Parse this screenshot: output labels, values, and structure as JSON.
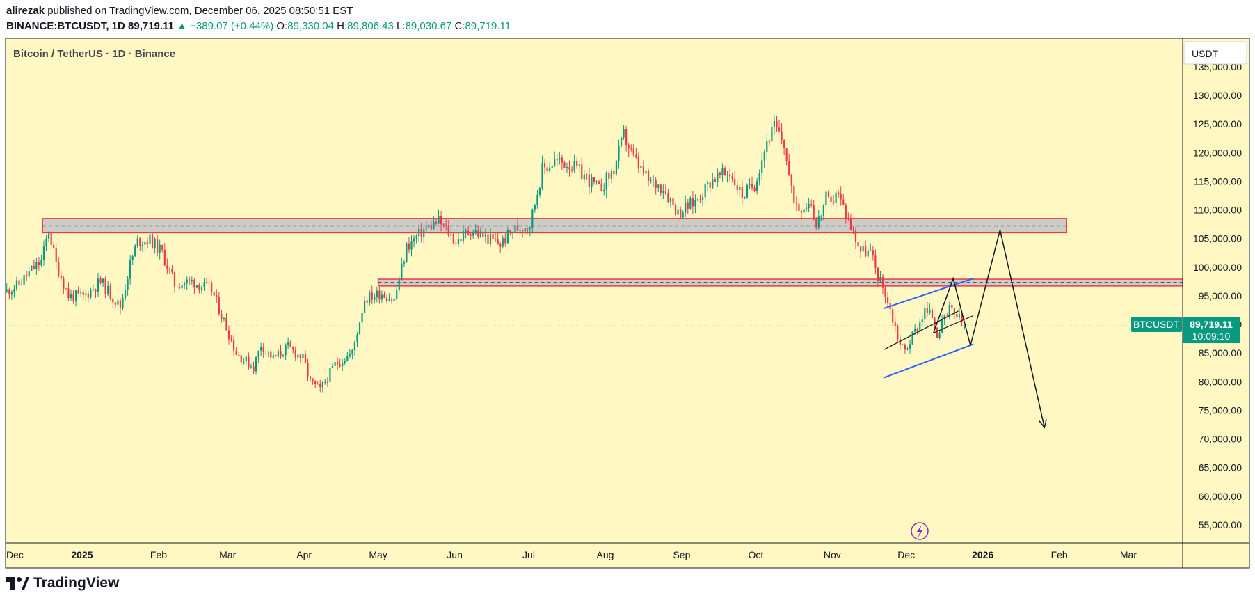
{
  "header": {
    "author": "alirezak",
    "published_text": "published on TradingView.com, December 06, 2025 08:50:51 EST",
    "symbol": "BINANCE:BTCUSDT, 1D",
    "last": "89,719.11",
    "change": "+389.07 (+0.44%)",
    "open_label": "O:",
    "open": "89,330.04",
    "high_label": "H:",
    "high": "89,806.43",
    "low_label": "L:",
    "low": "89,030.67",
    "close_label": "C:",
    "close": "89,719.11"
  },
  "chart_title": "Bitcoin / TetherUS · 1D · Binance",
  "currency": "USDT",
  "price_tag": {
    "symbol": "BTCUSDT",
    "price": "89,719.11",
    "countdown": "10:09:10"
  },
  "branding": "TradingView",
  "colors": {
    "background": "#fff8c2",
    "up": "#089981",
    "down": "#f23645",
    "zone_fill": "#c8c8c8",
    "zone_border": "#f23645",
    "channel": "#2962ff",
    "projection": "#131722",
    "flash": "#9c27b0"
  },
  "chart_data": {
    "type": "candlestick",
    "title": "Bitcoin / TetherUS · 1D · Binance",
    "ylabel": "USDT",
    "ylim": [
      50000,
      136000
    ],
    "yticks": [
      55000,
      60000,
      65000,
      70000,
      75000,
      80000,
      85000,
      90000,
      95000,
      100000,
      105000,
      110000,
      115000,
      120000,
      125000,
      130000,
      135000
    ],
    "ytick_labels": [
      "55,000.00",
      "60,000.00",
      "65,000.00",
      "70,000.00",
      "75,000.00",
      "80,000.00",
      "85,000.00",
      "90,000.00",
      "95,000.00",
      "100,000.00",
      "105,000.00",
      "110,000.00",
      "115,000.00",
      "120,000.00",
      "125,000.00",
      "130,000.00",
      "135,000.00"
    ],
    "x_months": [
      "Dec",
      "2025",
      "Feb",
      "Mar",
      "Apr",
      "May",
      "Jun",
      "Jul",
      "Aug",
      "Sep",
      "Oct",
      "Nov",
      "Dec",
      "2026",
      "Feb",
      "Mar"
    ],
    "x_month_offsets": [
      0,
      31,
      62,
      90,
      121,
      151,
      182,
      212,
      243,
      274,
      304,
      335,
      365,
      396,
      427,
      455
    ],
    "x_bold": [
      "2025",
      "2026"
    ],
    "xlim_days": [
      0,
      477
    ],
    "current_price": 89719.11,
    "price_path": [
      [
        0,
        95800
      ],
      [
        5,
        97000
      ],
      [
        10,
        99500
      ],
      [
        14,
        101000
      ],
      [
        17,
        106500
      ],
      [
        20,
        100500
      ],
      [
        25,
        95000
      ],
      [
        31,
        94800
      ],
      [
        38,
        97500
      ],
      [
        46,
        93000
      ],
      [
        50,
        100500
      ],
      [
        53,
        104500
      ],
      [
        58,
        104800
      ],
      [
        63,
        102500
      ],
      [
        68,
        97000
      ],
      [
        75,
        97500
      ],
      [
        83,
        96000
      ],
      [
        89,
        89500
      ],
      [
        93,
        85000
      ],
      [
        100,
        82500
      ],
      [
        103,
        86500
      ],
      [
        108,
        84000
      ],
      [
        114,
        86000
      ],
      [
        120,
        84000
      ],
      [
        123,
        80000
      ],
      [
        127,
        78500
      ],
      [
        133,
        83000
      ],
      [
        140,
        85000
      ],
      [
        145,
        94500
      ],
      [
        152,
        95500
      ],
      [
        157,
        94200
      ],
      [
        162,
        103500
      ],
      [
        169,
        106500
      ],
      [
        175,
        108000
      ],
      [
        182,
        104500
      ],
      [
        188,
        106500
      ],
      [
        195,
        105000
      ],
      [
        200,
        104000
      ],
      [
        205,
        106500
      ],
      [
        212,
        107500
      ],
      [
        217,
        117000
      ],
      [
        222,
        118500
      ],
      [
        228,
        118000
      ],
      [
        234,
        116000
      ],
      [
        240,
        113500
      ],
      [
        246,
        117000
      ],
      [
        250,
        123000
      ],
      [
        254,
        119000
      ],
      [
        260,
        115000
      ],
      [
        266,
        114000
      ],
      [
        272,
        109500
      ],
      [
        279,
        111500
      ],
      [
        286,
        115500
      ],
      [
        293,
        116500
      ],
      [
        298,
        112500
      ],
      [
        303,
        114500
      ],
      [
        308,
        122000
      ],
      [
        311,
        124500
      ],
      [
        315,
        121500
      ],
      [
        318,
        113000
      ],
      [
        321,
        110500
      ],
      [
        326,
        111500
      ],
      [
        328,
        107000
      ],
      [
        332,
        112000
      ],
      [
        334,
        110500
      ],
      [
        336,
        113500
      ],
      [
        339,
        110500
      ],
      [
        343,
        106000
      ],
      [
        346,
        103000
      ],
      [
        350,
        102500
      ],
      [
        353,
        98500
      ],
      [
        356,
        95500
      ],
      [
        359,
        91000
      ],
      [
        362,
        86500
      ],
      [
        364,
        85500
      ],
      [
        367,
        88000
      ],
      [
        370,
        90500
      ],
      [
        372,
        92500
      ],
      [
        375,
        91500
      ],
      [
        377,
        88500
      ],
      [
        379,
        90000
      ],
      [
        382,
        92500
      ],
      [
        385,
        91500
      ],
      [
        388,
        89719
      ]
    ],
    "zones": [
      {
        "name": "resistance-zone-upper",
        "from_day": 15,
        "to_day": 430,
        "low": 106000,
        "high": 108500,
        "mid": 107200
      },
      {
        "name": "resistance-zone-lower",
        "from_day": 151,
        "to_day": 477,
        "low": 96700,
        "high": 97900,
        "mid": 97300
      }
    ],
    "channel": {
      "upper": [
        [
          356,
          92800
        ],
        [
          392,
          98000
        ]
      ],
      "lower": [
        [
          356,
          80700
        ],
        [
          392,
          86500
        ]
      ],
      "inner_left": [
        [
          356,
          85600
        ],
        [
          386,
          92300
        ]
      ],
      "inner_right": [
        [
          376,
          88500
        ],
        [
          392,
          91500
        ]
      ]
    },
    "projection": [
      [
        376,
        88500
      ],
      [
        384,
        98000
      ],
      [
        391,
        86300
      ],
      [
        403,
        106500
      ],
      [
        421,
        72000
      ]
    ]
  }
}
